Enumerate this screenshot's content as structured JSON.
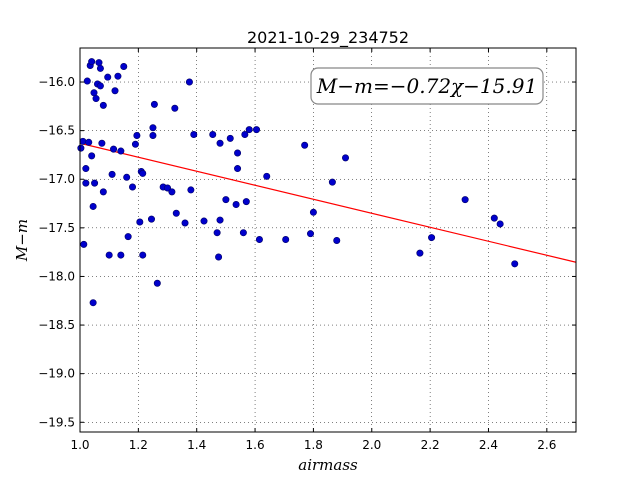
{
  "chart_data": {
    "type": "scatter",
    "title": "2021-10-29_234752",
    "xlabel": "airmass",
    "ylabel": "M−m",
    "xlim": [
      1.0,
      2.7
    ],
    "ylim": [
      -19.6,
      -15.65
    ],
    "y_inverted": true,
    "grid": true,
    "grid_style": "dotted",
    "x_ticks": [
      1.0,
      1.2,
      1.4,
      1.6,
      1.8,
      2.0,
      2.2,
      2.4,
      2.6
    ],
    "x_tick_labels": [
      "1.0",
      "1.2",
      "1.4",
      "1.6",
      "1.8",
      "2.0",
      "2.2",
      "2.4",
      "2.6"
    ],
    "y_ticks": [
      -16.0,
      -16.5,
      -17.0,
      -17.5,
      -18.0,
      -18.5,
      -19.0,
      -19.5
    ],
    "y_tick_labels": [
      "−16.0",
      "−16.5",
      "−17.0",
      "−17.5",
      "−18.0",
      "−18.5",
      "−19.0",
      "−19.5"
    ],
    "annotation": "M−m=−0.72χ−15.91",
    "annotation_position": "top-right",
    "point_color": "#0000cc",
    "fit_color": "#ff0000",
    "fit": {
      "slope": -0.72,
      "intercept": -15.91
    },
    "points": [
      [
        1.003,
        -16.68
      ],
      [
        1.01,
        -16.61
      ],
      [
        1.013,
        -17.67
      ],
      [
        1.02,
        -16.89
      ],
      [
        1.02,
        -17.04
      ],
      [
        1.025,
        -15.99
      ],
      [
        1.03,
        -16.62
      ],
      [
        1.035,
        -15.83
      ],
      [
        1.04,
        -15.79
      ],
      [
        1.04,
        -16.76
      ],
      [
        1.045,
        -17.28
      ],
      [
        1.045,
        -18.27
      ],
      [
        1.048,
        -16.11
      ],
      [
        1.05,
        -17.04
      ],
      [
        1.055,
        -16.17
      ],
      [
        1.06,
        -16.02
      ],
      [
        1.065,
        -15.8
      ],
      [
        1.07,
        -15.86
      ],
      [
        1.07,
        -16.04
      ],
      [
        1.075,
        -16.63
      ],
      [
        1.08,
        -16.24
      ],
      [
        1.08,
        -17.13
      ],
      [
        1.095,
        -15.95
      ],
      [
        1.1,
        -17.78
      ],
      [
        1.11,
        -16.95
      ],
      [
        1.115,
        -16.69
      ],
      [
        1.12,
        -16.09
      ],
      [
        1.13,
        -15.94
      ],
      [
        1.14,
        -16.71
      ],
      [
        1.14,
        -17.78
      ],
      [
        1.15,
        -15.84
      ],
      [
        1.16,
        -16.98
      ],
      [
        1.165,
        -17.59
      ],
      [
        1.18,
        -17.08
      ],
      [
        1.19,
        -16.64
      ],
      [
        1.195,
        -16.55
      ],
      [
        1.205,
        -17.44
      ],
      [
        1.21,
        -16.92
      ],
      [
        1.215,
        -16.94
      ],
      [
        1.215,
        -17.78
      ],
      [
        1.245,
        -17.41
      ],
      [
        1.25,
        -16.47
      ],
      [
        1.25,
        -16.55
      ],
      [
        1.255,
        -16.23
      ],
      [
        1.265,
        -18.07
      ],
      [
        1.285,
        -17.08
      ],
      [
        1.3,
        -17.09
      ],
      [
        1.315,
        -17.13
      ],
      [
        1.325,
        -16.27
      ],
      [
        1.33,
        -17.35
      ],
      [
        1.36,
        -17.45
      ],
      [
        1.375,
        -16.0
      ],
      [
        1.38,
        -17.11
      ],
      [
        1.39,
        -16.54
      ],
      [
        1.425,
        -17.43
      ],
      [
        1.455,
        -16.54
      ],
      [
        1.47,
        -17.55
      ],
      [
        1.475,
        -17.8
      ],
      [
        1.48,
        -16.63
      ],
      [
        1.48,
        -17.42
      ],
      [
        1.5,
        -17.21
      ],
      [
        1.515,
        -16.58
      ],
      [
        1.535,
        -17.26
      ],
      [
        1.54,
        -16.73
      ],
      [
        1.54,
        -16.89
      ],
      [
        1.56,
        -17.55
      ],
      [
        1.565,
        -16.54
      ],
      [
        1.57,
        -17.23
      ],
      [
        1.58,
        -16.49
      ],
      [
        1.605,
        -16.49
      ],
      [
        1.615,
        -17.62
      ],
      [
        1.64,
        -16.97
      ],
      [
        1.705,
        -17.62
      ],
      [
        1.77,
        -16.65
      ],
      [
        1.79,
        -17.56
      ],
      [
        1.8,
        -17.34
      ],
      [
        1.865,
        -17.03
      ],
      [
        1.88,
        -17.63
      ],
      [
        1.91,
        -16.78
      ],
      [
        2.165,
        -17.76
      ],
      [
        2.205,
        -17.6
      ],
      [
        2.32,
        -17.21
      ],
      [
        2.42,
        -17.4
      ],
      [
        2.44,
        -17.46
      ],
      [
        2.49,
        -17.87
      ]
    ]
  }
}
